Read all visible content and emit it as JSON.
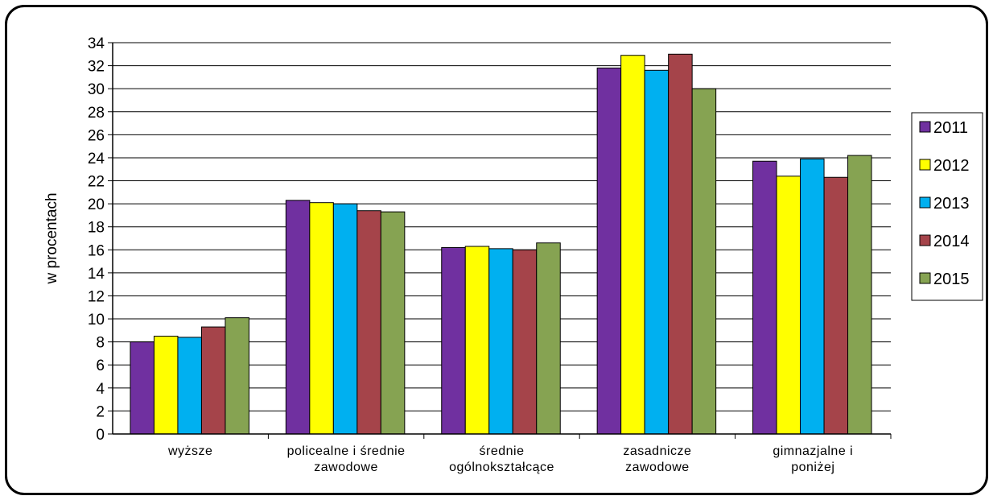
{
  "chart_data": {
    "type": "bar",
    "categories": [
      [
        "wyższe"
      ],
      [
        "policealne i średnie",
        "zawodowe"
      ],
      [
        "średnie",
        "ogólnokształcące"
      ],
      [
        "zasadnicze",
        "zawodowe"
      ],
      [
        "gimnazjalne i",
        "poniżej"
      ]
    ],
    "series": [
      {
        "name": "2011",
        "color": "#7030A0",
        "values": [
          8.0,
          20.3,
          16.2,
          31.8,
          23.7
        ]
      },
      {
        "name": "2012",
        "color": "#FFFF00",
        "values": [
          8.5,
          20.1,
          16.3,
          32.9,
          22.4
        ]
      },
      {
        "name": "2013",
        "color": "#00B0F0",
        "values": [
          8.4,
          20.0,
          16.1,
          31.6,
          23.9
        ]
      },
      {
        "name": "2014",
        "color": "#A5444A",
        "values": [
          9.3,
          19.4,
          16.0,
          33.0,
          22.3
        ]
      },
      {
        "name": "2015",
        "color": "#86A352",
        "values": [
          10.1,
          19.3,
          16.6,
          30.0,
          24.2
        ]
      }
    ],
    "ylabel": "w procentach",
    "ylim": [
      0,
      34
    ],
    "yticks": [
      0,
      2,
      4,
      6,
      8,
      10,
      12,
      14,
      16,
      18,
      20,
      22,
      24,
      26,
      28,
      30,
      32,
      34
    ],
    "grid": true,
    "legend": "right"
  }
}
